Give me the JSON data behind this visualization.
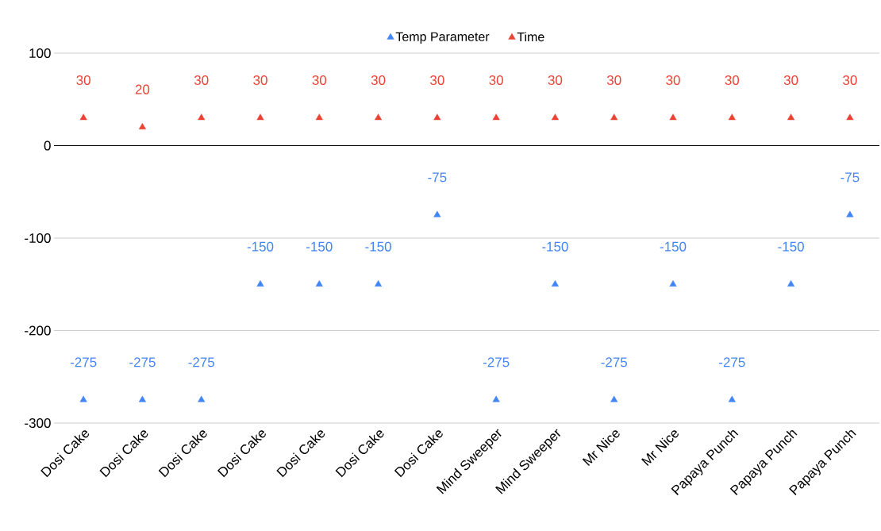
{
  "chart_data": {
    "type": "scatter",
    "categories": [
      "Dosi Cake",
      "Dosi Cake",
      "Dosi Cake",
      "Dosi Cake",
      "Dosi Cake",
      "Dosi Cake",
      "Dosi Cake",
      "Mind Sweeper",
      "Mind Sweeper",
      "Mr Nice",
      "Mr Nice",
      "Papaya Punch",
      "Papaya Punch",
      "Papaya Punch"
    ],
    "series": [
      {
        "name": "Temp Parameter",
        "color": "#4285f4",
        "values": [
          -275,
          -275,
          -275,
          -150,
          -150,
          -150,
          -75,
          -275,
          -150,
          -275,
          -150,
          -275,
          -150,
          -75
        ]
      },
      {
        "name": "Time",
        "color": "#ea4335",
        "values": [
          30,
          20,
          30,
          30,
          30,
          30,
          30,
          30,
          30,
          30,
          30,
          30,
          30,
          30
        ]
      }
    ],
    "ylim": [
      -300,
      100
    ],
    "yticks": [
      -300,
      -200,
      -100,
      0,
      100
    ],
    "grid": "y",
    "legend": "top",
    "marker": "triangle",
    "data_labels": true
  }
}
